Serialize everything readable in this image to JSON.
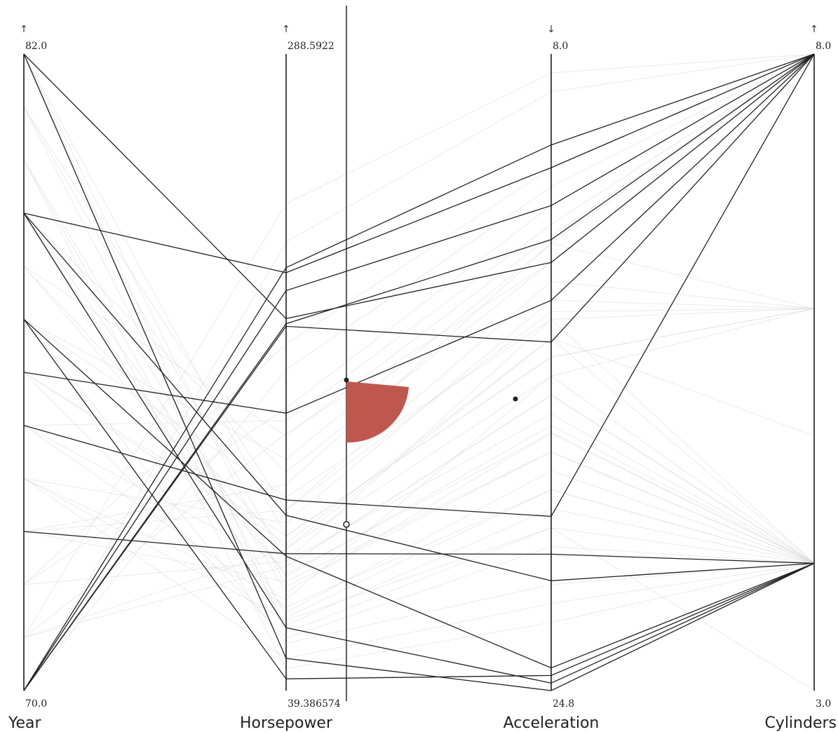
{
  "chart_data": {
    "type": "parallel-coordinates",
    "axes": [
      {
        "key": "year",
        "name": "Year",
        "max_label": "82.0",
        "min_label": "70.0",
        "min": 70.0,
        "max": 82.0,
        "arrow": "↑",
        "arrow_color": "#333333"
      },
      {
        "key": "hp",
        "name": "Horsepower",
        "max_label": "288.5922",
        "min_label": "39.386574",
        "min": 39.386574,
        "max": 288.5922,
        "arrow": "↑",
        "arrow_color": "#333333"
      },
      {
        "key": "acc",
        "name": "Acceleration",
        "max_label": "8.0",
        "min_label": "24.8",
        "min": 24.8,
        "max": 8.0,
        "arrow": "↓",
        "arrow_color": "#c0392b"
      },
      {
        "key": "cyl",
        "name": "Cylinders",
        "max_label": "8.0",
        "min_label": "3.0",
        "min": 3.0,
        "max": 8.0,
        "arrow": "↑",
        "arrow_color": "#333333"
      }
    ],
    "selected_records": [
      {
        "year": 82.0,
        "hp": 185.0,
        "acc": 13.5,
        "cyl": 8
      },
      {
        "year": 79.0,
        "hp": 108.0,
        "acc": 21.9,
        "cyl": 4
      },
      {
        "year": 79.0,
        "hp": 203.0,
        "acc": 11.0,
        "cyl": 8
      },
      {
        "year": 73.0,
        "hp": 93.0,
        "acc": 21.2,
        "cyl": 4
      },
      {
        "year": 77.0,
        "hp": 92.0,
        "acc": 24.2,
        "cyl": 4
      },
      {
        "year": 75.0,
        "hp": 114.0,
        "acc": 20.2,
        "cyl": 8
      },
      {
        "year": 70.0,
        "hp": 196.0,
        "acc": 12.0,
        "cyl": 8
      },
      {
        "year": 70.0,
        "hp": 183.0,
        "acc": 12.9,
        "cyl": 8
      },
      {
        "year": 70.0,
        "hp": 205.0,
        "acc": 10.4,
        "cyl": 8
      },
      {
        "year": 70.0,
        "hp": 182.0,
        "acc": 15.6,
        "cyl": 8
      },
      {
        "year": 76.0,
        "hp": 148.0,
        "acc": 14.5,
        "cyl": 8
      },
      {
        "year": 82.0,
        "hp": 52.0,
        "acc": 24.8,
        "cyl": 4
      },
      {
        "year": 79.0,
        "hp": 64.0,
        "acc": 24.6,
        "cyl": 4
      },
      {
        "year": 77.0,
        "hp": 44.0,
        "acc": 24.4,
        "cyl": 4
      }
    ],
    "context_records": [
      {
        "year": 71,
        "hp": 95,
        "acc": 15.5,
        "cyl": 4
      },
      {
        "year": 72,
        "hp": 150,
        "acc": 12.0,
        "cyl": 8
      },
      {
        "year": 73,
        "hp": 110,
        "acc": 14.0,
        "cyl": 6
      },
      {
        "year": 74,
        "hp": 75,
        "acc": 16.5,
        "cyl": 4
      },
      {
        "year": 75,
        "hp": 88,
        "acc": 17.0,
        "cyl": 4
      },
      {
        "year": 76,
        "hp": 100,
        "acc": 16.0,
        "cyl": 6
      },
      {
        "year": 77,
        "hp": 130,
        "acc": 13.0,
        "cyl": 8
      },
      {
        "year": 78,
        "hp": 85,
        "acc": 18.0,
        "cyl": 4
      },
      {
        "year": 79,
        "hp": 70,
        "acc": 19.0,
        "cyl": 4
      },
      {
        "year": 80,
        "hp": 65,
        "acc": 20.0,
        "cyl": 4
      },
      {
        "year": 81,
        "hp": 90,
        "acc": 17.5,
        "cyl": 4
      },
      {
        "year": 82,
        "hp": 80,
        "acc": 18.5,
        "cyl": 4
      },
      {
        "year": 70,
        "hp": 165,
        "acc": 11.5,
        "cyl": 8
      },
      {
        "year": 71,
        "hp": 140,
        "acc": 13.5,
        "cyl": 8
      },
      {
        "year": 72,
        "hp": 90,
        "acc": 15.0,
        "cyl": 4
      },
      {
        "year": 73,
        "hp": 120,
        "acc": 13.0,
        "cyl": 6
      },
      {
        "year": 74,
        "hp": 105,
        "acc": 14.5,
        "cyl": 6
      },
      {
        "year": 75,
        "hp": 72,
        "acc": 19.5,
        "cyl": 4
      },
      {
        "year": 76,
        "hp": 60,
        "acc": 21.0,
        "cyl": 4
      },
      {
        "year": 77,
        "hp": 115,
        "acc": 15.0,
        "cyl": 6
      },
      {
        "year": 78,
        "hp": 95,
        "acc": 16.5,
        "cyl": 6
      },
      {
        "year": 79,
        "hp": 125,
        "acc": 13.5,
        "cyl": 8
      },
      {
        "year": 80,
        "hp": 78,
        "acc": 18.0,
        "cyl": 4
      },
      {
        "year": 81,
        "hp": 68,
        "acc": 19.5,
        "cyl": 4
      },
      {
        "year": 82,
        "hp": 100,
        "acc": 16.0,
        "cyl": 6
      },
      {
        "year": 70,
        "hp": 215,
        "acc": 9.0,
        "cyl": 8
      },
      {
        "year": 71,
        "hp": 88,
        "acc": 17.0,
        "cyl": 4
      },
      {
        "year": 72,
        "hp": 175,
        "acc": 11.0,
        "cyl": 8
      },
      {
        "year": 73,
        "hp": 82,
        "acc": 18.5,
        "cyl": 4
      },
      {
        "year": 74,
        "hp": 67,
        "acc": 20.5,
        "cyl": 4
      },
      {
        "year": 75,
        "hp": 145,
        "acc": 12.5,
        "cyl": 8
      },
      {
        "year": 76,
        "hp": 97,
        "acc": 15.5,
        "cyl": 5
      },
      {
        "year": 77,
        "hp": 58,
        "acc": 22.0,
        "cyl": 4
      },
      {
        "year": 78,
        "hp": 139,
        "acc": 12.8,
        "cyl": 8
      },
      {
        "year": 79,
        "hp": 84,
        "acc": 17.8,
        "cyl": 4
      },
      {
        "year": 80,
        "hp": 48,
        "acc": 23.0,
        "cyl": 4
      },
      {
        "year": 81,
        "hp": 110,
        "acc": 14.8,
        "cyl": 6
      },
      {
        "year": 82,
        "hp": 62,
        "acc": 20.5,
        "cyl": 3
      },
      {
        "year": 71,
        "hp": 230,
        "acc": 8.5,
        "cyl": 8
      },
      {
        "year": 74,
        "hp": 52,
        "acc": 22.5,
        "cyl": 4
      }
    ]
  }
}
